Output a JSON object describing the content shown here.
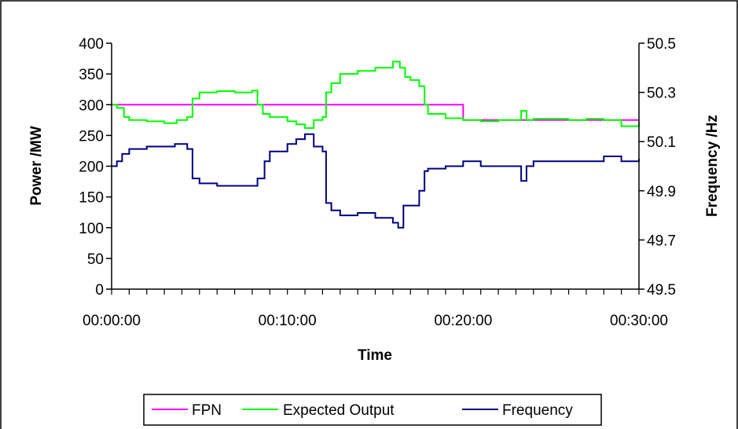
{
  "chart_data": {
    "type": "line",
    "title": "",
    "xlabel": "Time",
    "ylabel": "Power /MW",
    "y2label": "Frequency /Hz",
    "x_unit": "minutes",
    "xlim": [
      0,
      30
    ],
    "ylim": [
      0,
      400
    ],
    "y2lim": [
      49.5,
      50.5
    ],
    "x_tick_labels": [
      {
        "value": 0,
        "label": "00:00:00"
      },
      {
        "value": 10,
        "label": "00:10:00"
      },
      {
        "value": 20,
        "label": "00:20:00"
      },
      {
        "value": 30,
        "label": "00:30:00"
      }
    ],
    "y_ticks": [
      0,
      50,
      100,
      150,
      200,
      250,
      300,
      350,
      400
    ],
    "y2_ticks": [
      "49.5",
      "49.7",
      "49.9",
      "50.1",
      "50.3",
      "50.5"
    ],
    "grid": false,
    "legend_position": "bottom",
    "series": [
      {
        "name": "FPN",
        "axis": "left",
        "color": "#ff00ff",
        "x": [
          0,
          15,
          20,
          30
        ],
        "y": [
          300,
          300,
          275,
          275
        ]
      },
      {
        "name": "Expected Output",
        "axis": "left",
        "color": "#00ff00",
        "x": [
          0,
          0.3,
          0.7,
          1,
          2,
          3,
          3.7,
          4.3,
          4.6,
          5,
          6,
          7,
          8,
          8.3,
          8.6,
          9,
          10,
          10.5,
          11,
          11.5,
          12,
          12.2,
          12.5,
          13,
          14,
          15,
          16,
          16.4,
          16.7,
          17,
          17.5,
          17.8,
          18,
          19,
          20,
          21,
          22,
          23,
          23.3,
          23.6,
          24,
          25,
          26,
          27,
          28,
          29,
          30
        ],
        "y": [
          300,
          295,
          280,
          275,
          273,
          270,
          275,
          280,
          310,
          320,
          322,
          320,
          323,
          300,
          285,
          280,
          273,
          268,
          262,
          275,
          280,
          320,
          335,
          350,
          355,
          360,
          370,
          360,
          345,
          340,
          330,
          300,
          285,
          278,
          275,
          273,
          275,
          275,
          290,
          275,
          277,
          277,
          275,
          277,
          275,
          265,
          272
        ]
      },
      {
        "name": "Frequency",
        "axis": "right",
        "color": "#000080",
        "x": [
          0,
          0.3,
          0.6,
          1,
          2,
          3,
          3.6,
          4.3,
          4.6,
          5,
          6,
          7,
          8,
          8.3,
          8.7,
          9,
          10,
          10.5,
          11,
          11.5,
          12,
          12.2,
          12.5,
          13,
          14,
          15,
          16,
          16.3,
          16.6,
          17,
          17.5,
          17.8,
          18,
          19,
          20,
          21,
          22,
          23,
          23.3,
          23.6,
          24,
          25,
          26,
          27,
          28,
          29,
          30
        ],
        "y": [
          50.0,
          50.02,
          50.05,
          50.07,
          50.08,
          50.08,
          50.09,
          50.07,
          49.95,
          49.93,
          49.92,
          49.92,
          49.92,
          49.95,
          50.02,
          50.06,
          50.09,
          50.11,
          50.13,
          50.08,
          50.06,
          49.85,
          49.82,
          49.8,
          49.81,
          49.79,
          49.77,
          49.75,
          49.84,
          49.84,
          49.9,
          49.98,
          49.99,
          50.0,
          50.02,
          50.0,
          50.0,
          50.0,
          49.94,
          50.0,
          50.02,
          50.02,
          50.02,
          50.02,
          50.04,
          50.02,
          50.03
        ]
      }
    ]
  }
}
